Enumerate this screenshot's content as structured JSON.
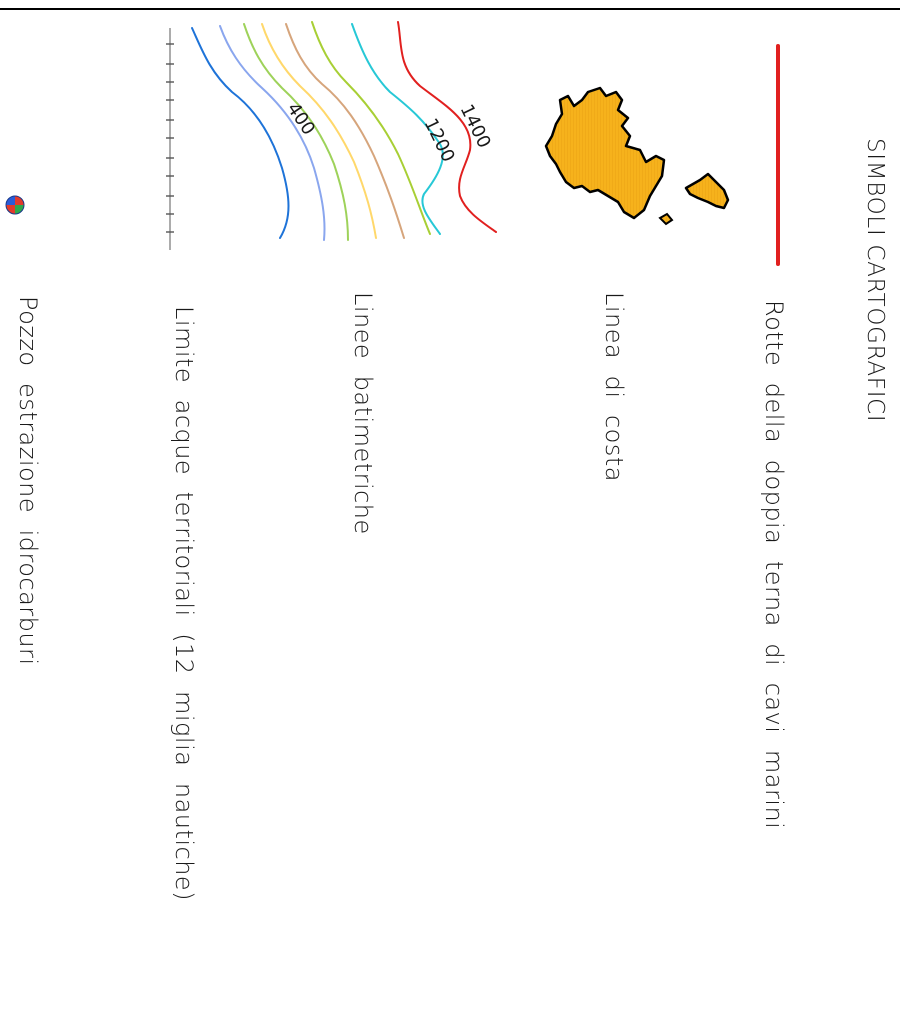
{
  "legend": {
    "title": "SIMBOLI CARTOGRAFICI",
    "items": [
      {
        "symbol": "red-line",
        "label": "Rotte della doppia terna di cavi marini"
      },
      {
        "symbol": "island-shape",
        "label": "Linea di costa"
      },
      {
        "symbol": "contour-lines",
        "label": "Linee batimetriche"
      },
      {
        "symbol": "dashed-limit-line",
        "label": "Limite acque territoriali (12 miglia nautiche)"
      },
      {
        "symbol": "well-icon",
        "label": "Pozzo estrazione idrocarburi"
      }
    ],
    "bathymetry_labels": [
      "400",
      "1200",
      "1400"
    ],
    "colors": {
      "cable_route": "#e1201f",
      "coastline_fill": "#f6b21c",
      "coastline_outline": "#000000",
      "contour_400": "#1e73d8",
      "contour_2": "#8aa6ee",
      "contour_3": "#9ed25a",
      "contour_4": "#ffd86b",
      "contour_5": "#d6a57c",
      "contour_6": "#a8cf35",
      "contour_1200": "#27c8d6",
      "contour_1400": "#e1201f",
      "well_blue": "#2a5bd7",
      "well_red": "#e23a2a",
      "well_green": "#2fa84a"
    }
  }
}
